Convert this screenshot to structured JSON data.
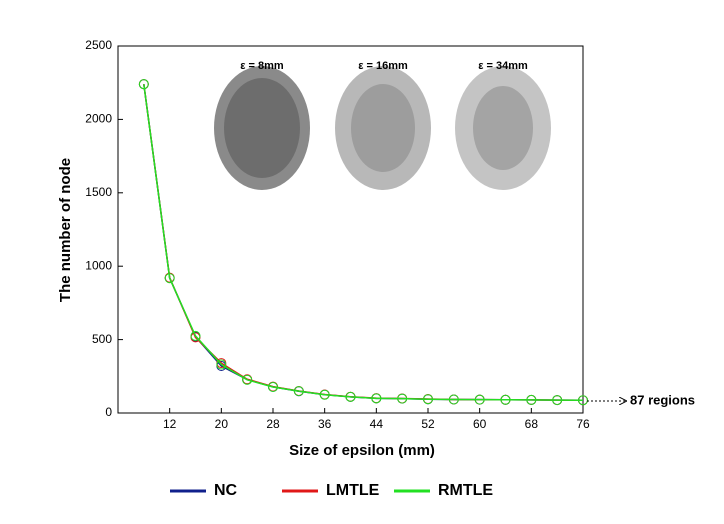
{
  "chart_data": {
    "type": "line",
    "x_label": "Size of epsilon (mm)",
    "y_label": "The number of node",
    "x": [
      8,
      12,
      16,
      20,
      24,
      28,
      32,
      36,
      40,
      44,
      48,
      52,
      56,
      60,
      64,
      68,
      72,
      76
    ],
    "series": [
      {
        "name": "NC",
        "color": "#10208c",
        "values": [
          2240,
          920,
          520,
          320,
          228,
          178,
          148,
          125,
          110,
          100,
          98,
          94,
          92,
          91,
          90,
          89,
          88,
          87
        ]
      },
      {
        "name": "LMTLE",
        "color": "#e01818",
        "values": [
          2240,
          922,
          515,
          340,
          230,
          180,
          150,
          126,
          111,
          101,
          99,
          95,
          92,
          91,
          90,
          89,
          88,
          87
        ]
      },
      {
        "name": "RMTLE",
        "color": "#22e022",
        "values": [
          2240,
          918,
          525,
          330,
          226,
          177,
          149,
          124,
          110,
          100,
          98,
          94,
          92,
          91,
          90,
          89,
          88,
          87
        ]
      }
    ],
    "xlim": [
      4,
      76
    ],
    "xticks": [
      12,
      20,
      28,
      36,
      44,
      52,
      60,
      68,
      76
    ],
    "ylim": [
      0,
      2500
    ],
    "yticks": [
      0,
      500,
      1000,
      1500,
      2000,
      2500
    ],
    "inset_labels": [
      "ε = 8mm",
      "ε = 16mm",
      "ε = 34mm"
    ],
    "annotation": "87 regions"
  }
}
